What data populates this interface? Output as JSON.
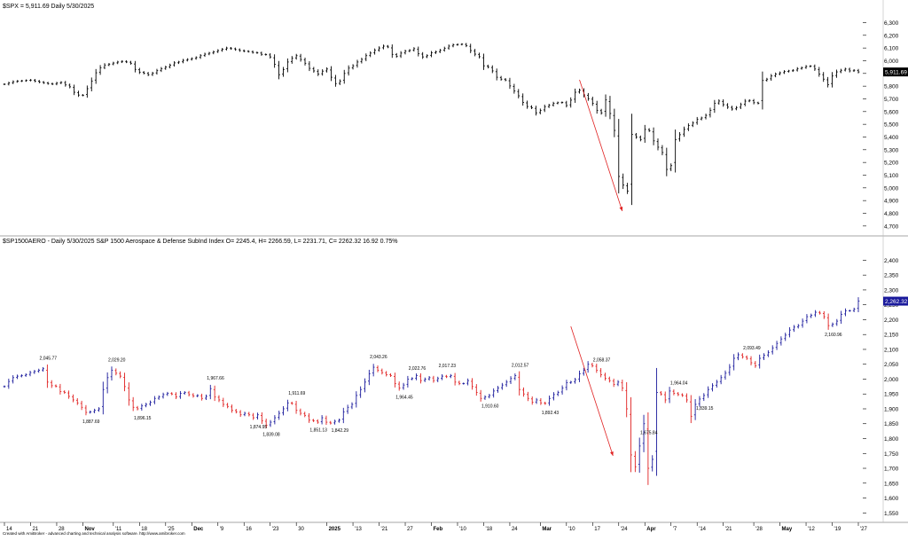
{
  "colors": {
    "up": "#1a1a9c",
    "down": "#e02020",
    "spx_bar": "#000000",
    "price_box_spx": "#000000",
    "price_box_aero": "#1a1a9c",
    "arrow": "#e02020",
    "grid": "#d0d0d0"
  },
  "footer": "Created with AmiBroker - advanced charting and technical analysis software. http://www.amibroker.com",
  "chart_data": [
    {
      "type": "line",
      "style": "ohlc-bars",
      "title": "$SPX = 5,911.69 Daily 5/30/2025",
      "current_price": "5,911.69",
      "ylim": [
        4650,
        6380
      ],
      "yticks": [
        "4,700",
        "4,800",
        "4,900",
        "5,000",
        "5,100",
        "5,200",
        "5,300",
        "5,400",
        "5,500",
        "5,600",
        "5,700",
        "5,800",
        "5,900",
        "6,000",
        "6,100",
        "6,200",
        "6,300"
      ],
      "ytick_values": [
        4700,
        4800,
        4900,
        5000,
        5100,
        5200,
        5300,
        5400,
        5500,
        5600,
        5700,
        5800,
        5900,
        6000,
        6100,
        6200,
        6300
      ],
      "series": [
        {
          "values": [
            5815,
            5825,
            5835,
            5840,
            5842,
            5845,
            5848,
            5840,
            5832,
            5826,
            5820,
            5816,
            5824,
            5830,
            5810,
            5795,
            5752,
            5730,
            5728,
            5780,
            5840,
            5905,
            5945,
            5966,
            5973,
            5982,
            5990,
            5995,
            5990,
            5980,
            5932,
            5910,
            5902,
            5890,
            5902,
            5922,
            5938,
            5950,
            5965,
            5983,
            5990,
            6003,
            6010,
            6017,
            6025,
            6040,
            6052,
            6060,
            6070,
            6080,
            6090,
            6100,
            6095,
            6088,
            6080,
            6075,
            6072,
            6065,
            6062,
            6050,
            6048,
            6030,
            5972,
            5890,
            5930,
            5990,
            6020,
            6040,
            6010,
            5980,
            5940,
            5920,
            5895,
            5918,
            5935,
            5870,
            5820,
            5840,
            5900,
            5942,
            5960,
            5990,
            6010,
            6040,
            6060,
            6082,
            6100,
            6115,
            6108,
            6050,
            6035,
            6060,
            6075,
            6082,
            6095,
            6055,
            6030,
            6040,
            6062,
            6070,
            6082,
            6098,
            6115,
            6125,
            6128,
            6130,
            6118,
            6080,
            6052,
            6032,
            5960,
            5950,
            5920,
            5870,
            5855,
            5848,
            5802,
            5762,
            5724,
            5672,
            5640,
            5630,
            5590,
            5610,
            5638,
            5650,
            5665,
            5670,
            5672,
            5648,
            5690,
            5752,
            5768,
            5732,
            5702,
            5665,
            5610,
            5590,
            5692,
            5585,
            5452,
            5090,
            5022,
            4975,
            5420,
            5400,
            5380,
            5460,
            5450,
            5370,
            5320,
            5278,
            5145,
            5175,
            5380,
            5418,
            5460,
            5490,
            5510,
            5540,
            5550,
            5570,
            5610,
            5665,
            5683,
            5655,
            5635,
            5620,
            5632,
            5655,
            5682,
            5688,
            5670,
            5665,
            5845,
            5855,
            5880,
            5895,
            5905,
            5915,
            5920,
            5925,
            5938,
            5945,
            5955,
            5958,
            5935,
            5895,
            5855,
            5812,
            5880,
            5912,
            5925,
            5935,
            5920,
            5925,
            5911.69
          ]
        }
      ],
      "annotations": []
    },
    {
      "type": "line",
      "style": "ohlc-bars",
      "title": "$SP1500AERO - Daily  5/30/2025  S&P 1500 Aerospace & Defense SubInd Index  O= 2245.4, H= 2266.59, L= 2231.71, C= 2262.32  16.92  0.75%",
      "current_price": "2,262.32",
      "ylim": [
        1530,
        2440
      ],
      "yticks": [
        "1,550",
        "1,600",
        "1,650",
        "1,700",
        "1,750",
        "1,800",
        "1,850",
        "1,900",
        "1,950",
        "2,000",
        "2,050",
        "2,100",
        "2,150",
        "2,200",
        "2,250",
        "2,300",
        "2,350",
        "2,400"
      ],
      "ytick_values": [
        1550,
        1600,
        1650,
        1700,
        1750,
        1800,
        1850,
        1900,
        1950,
        2000,
        2050,
        2100,
        2150,
        2200,
        2250,
        2300,
        2350,
        2400
      ],
      "series": [
        {
          "values": [
            1975,
            1992,
            2005,
            2010,
            2012,
            2015,
            2022,
            2026,
            2030,
            2035,
            1990,
            1978,
            1976,
            1958,
            1955,
            1942,
            1930,
            1920,
            1905,
            1888,
            1890,
            1895,
            1900,
            1965,
            2005,
            2030,
            2020,
            2010,
            1975,
            1930,
            1905,
            1900,
            1910,
            1915,
            1922,
            1935,
            1940,
            1948,
            1952,
            1950,
            1940,
            1952,
            1955,
            1948,
            1943,
            1945,
            1935,
            1942,
            1968,
            1940,
            1930,
            1915,
            1908,
            1895,
            1890,
            1880,
            1885,
            1880,
            1870,
            1880,
            1860,
            1845,
            1855,
            1870,
            1885,
            1900,
            1920,
            1918,
            1895,
            1885,
            1878,
            1862,
            1860,
            1855,
            1870,
            1855,
            1852,
            1858,
            1862,
            1890,
            1905,
            1915,
            1945,
            1965,
            1990,
            2018,
            2040,
            2030,
            2022,
            2015,
            2012,
            1985,
            1970,
            1980,
            2000,
            2002,
            2012,
            1995,
            2000,
            2005,
            1995,
            2002,
            2010,
            2008,
            2012,
            1990,
            1985,
            1985,
            1995,
            1975,
            1955,
            1935,
            1940,
            1945,
            1960,
            1970,
            1980,
            1990,
            2002,
            2012,
            1965,
            1950,
            1935,
            1922,
            1930,
            1920,
            1918,
            1935,
            1948,
            1955,
            1970,
            1988,
            1990,
            1998,
            2018,
            2030,
            2050,
            2045,
            2030,
            2015,
            2003,
            1995,
            1982,
            1990,
            1970,
            1900,
            1745,
            1705,
            1775,
            1850,
            1700,
            1730,
            1955,
            1950,
            1930,
            1960,
            1952,
            1948,
            1945,
            1930,
            1875,
            1915,
            1933,
            1945,
            1965,
            1978,
            1990,
            2005,
            2020,
            2040,
            2070,
            2082,
            2075,
            2070,
            2055,
            2045,
            2070,
            2080,
            2090,
            2105,
            2120,
            2135,
            2148,
            2165,
            2175,
            2180,
            2195,
            2210,
            2215,
            2225,
            2222,
            2210,
            2180,
            2185,
            2195,
            2218,
            2230,
            2230,
            2235,
            2262.32
          ]
        }
      ],
      "annotations": []
    }
  ],
  "x_labels": [
    "14",
    "21",
    "28",
    "Nov",
    "'11",
    "18",
    "'25",
    "Dec",
    "'9",
    "16",
    "'23",
    "30",
    "2025",
    "'13",
    "'21",
    "27",
    "Feb",
    "'10",
    "'18",
    "24",
    "Mar",
    "'10",
    "17",
    "'24",
    "Apr",
    "'7",
    "'14",
    "'21",
    "'28",
    "May",
    "'12",
    "'19",
    "'27"
  ],
  "spx_annotations": [],
  "aero_annotations": [
    {
      "label": "2,045.77",
      "i": 9,
      "side": "hi"
    },
    {
      "label": "1,887.69",
      "i": 19,
      "side": "lo"
    },
    {
      "label": "2,029.20",
      "i": 25,
      "side": "hi"
    },
    {
      "label": "1,896.15",
      "i": 31,
      "side": "lo"
    },
    {
      "label": "1,967.66",
      "i": 48,
      "side": "hi"
    },
    {
      "label": "1,874.95",
      "i": 58,
      "side": "lo"
    },
    {
      "label": "1,839.08",
      "i": 61,
      "side": "lo"
    },
    {
      "label": "1,911.69",
      "i": 67,
      "side": "hi"
    },
    {
      "label": "1,851.13",
      "i": 72,
      "side": "lo"
    },
    {
      "label": "1,842.29",
      "i": 77,
      "side": "lo"
    },
    {
      "label": "2,043.26",
      "i": 86,
      "side": "hi"
    },
    {
      "label": "1,964.45",
      "i": 92,
      "side": "lo"
    },
    {
      "label": "2,022.76",
      "i": 95,
      "side": "hi"
    },
    {
      "label": "2,017.23",
      "i": 102,
      "side": "hi"
    },
    {
      "label": "1,910.60",
      "i": 112,
      "side": "lo"
    },
    {
      "label": "2,012.57",
      "i": 119,
      "side": "hi"
    },
    {
      "label": "1,892.43",
      "i": 126,
      "side": "lo"
    },
    {
      "label": "2,058.37",
      "i": 138,
      "side": "hi"
    },
    {
      "label": "1,675.84",
      "i": 149,
      "side": "lo"
    },
    {
      "label": "1,964.04",
      "i": 156,
      "side": "hi"
    },
    {
      "label": "1,839.15",
      "i": 162,
      "side": "lo"
    },
    {
      "label": "2,093.49",
      "i": 173,
      "side": "hi"
    },
    {
      "label": "2,160.96",
      "i": 192,
      "side": "lo"
    }
  ]
}
